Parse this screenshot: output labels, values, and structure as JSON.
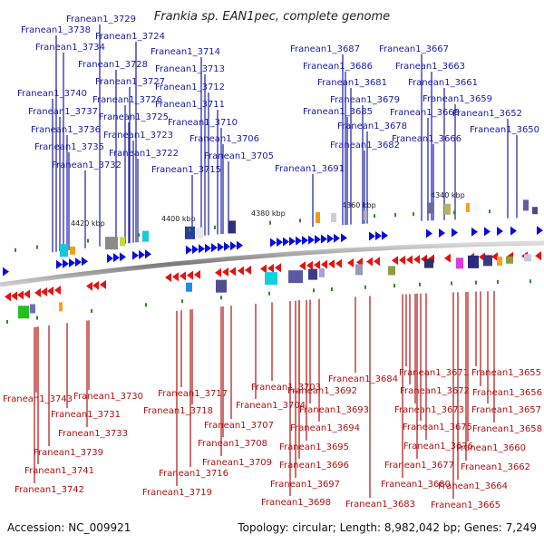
{
  "title": "Frankia sp. EAN1pec, complete genome",
  "footer": {
    "accession": "Accession: NC_009921",
    "summary": "Topology: circular; Length: 8,982,042 bp; Genes: 7,249"
  },
  "colors": {
    "forward": "#0a0adc",
    "reverse": "#e81010",
    "top_label": "#1a1aa6",
    "bottom_label": "#b01010",
    "backbone": "#8c8c8c",
    "tick": "#2a8a2a"
  },
  "kbp_markers": [
    "4420 kbp",
    "4400 kbp",
    "4380 kbp",
    "4360 kbp",
    "4340 kbp"
  ],
  "top_genes": [
    "Franean1_3729",
    "Franean1_3738",
    "Franean1_3724",
    "Franean1_3734",
    "Franean1_3714",
    "Franean1_3728",
    "Franean1_3713",
    "Franean1_3727",
    "Franean1_3712",
    "Franean1_3740",
    "Franean1_3726",
    "Franean1_3711",
    "Franean1_3737",
    "Franean1_3725",
    "Franean1_3710",
    "Franean1_3736",
    "Franean1_3723",
    "Franean1_3706",
    "Franean1_3735",
    "Franean1_3722",
    "Franean1_3705",
    "Franean1_3732",
    "Franean1_3715",
    "Franean1_3687",
    "Franean1_3667",
    "Franean1_3686",
    "Franean1_3663",
    "Franean1_3681",
    "Franean1_3661",
    "Franean1_3679",
    "Franean1_3659",
    "Franean1_3685",
    "Franean1_3668",
    "Franean1_3652",
    "Franean1_3678",
    "Franean1_3650",
    "Franean1_3666",
    "Franean1_3682",
    "Franean1_3691"
  ],
  "bottom_genes": [
    "Franean1_3655",
    "Franean1_3671",
    "Franean1_3684",
    "Franean1_3656",
    "Franean1_3672",
    "Franean1_3703",
    "Franean1_3692",
    "Franean1_3657",
    "Franean1_3673",
    "Franean1_3743",
    "Franean1_3730",
    "Franean1_3717",
    "Franean1_3704",
    "Franean1_3693",
    "Franean1_3718",
    "Franean1_3658",
    "Franean1_3675",
    "Franean1_3731",
    "Franean1_3707",
    "Franean1_3694",
    "Franean1_3733",
    "Franean1_3676",
    "Franean1_3660",
    "Franean1_3708",
    "Franean1_3695",
    "Franean1_3739",
    "Franean1_3709",
    "Franean1_3696",
    "Franean1_3677",
    "Franean1_3662",
    "Franean1_3741",
    "Franean1_3716",
    "Franean1_3697",
    "Franean1_3680",
    "Franean1_3664",
    "Franean1_3742",
    "Franean1_3719",
    "Franean1_3698",
    "Franean1_3683",
    "Franean1_3665"
  ]
}
